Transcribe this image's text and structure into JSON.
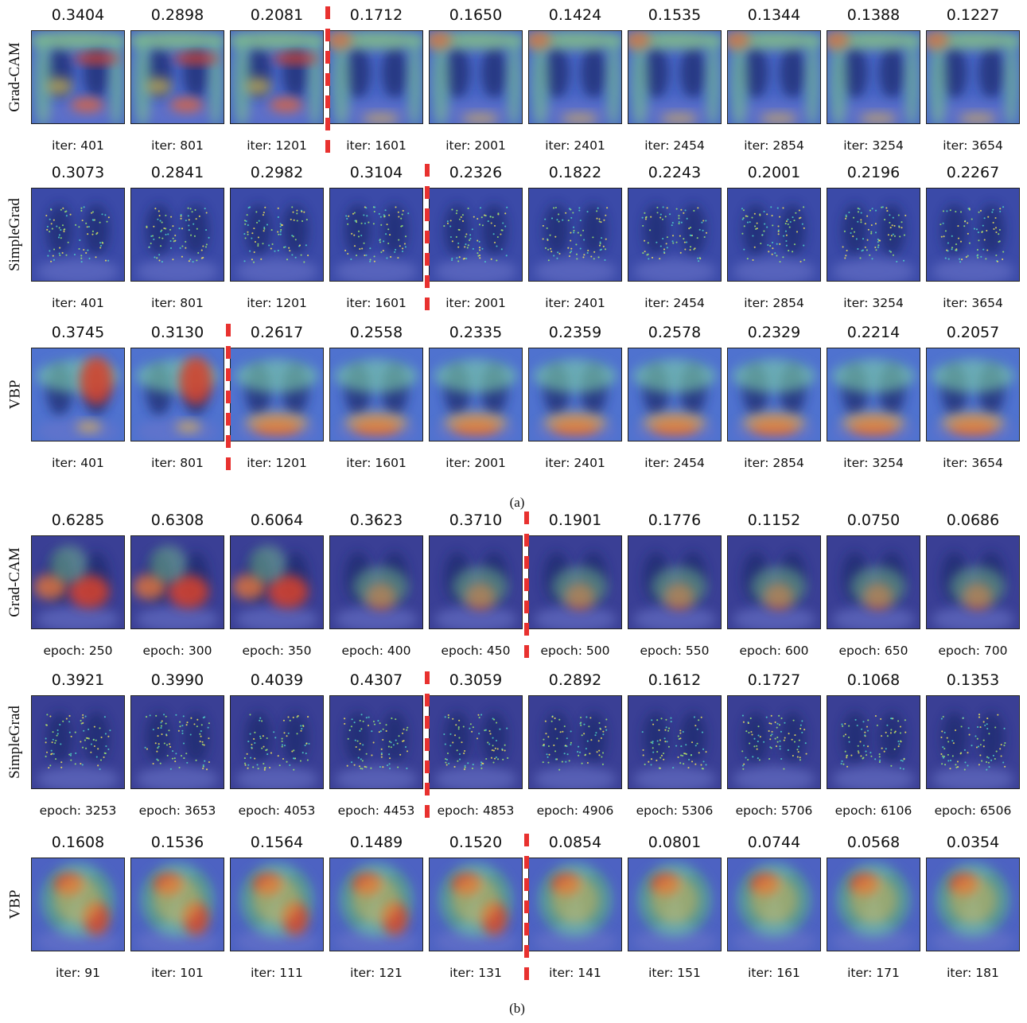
{
  "accent_color": "#e8312f",
  "panels": [
    {
      "caption": "(a)",
      "rows": [
        {
          "label": "Grad-CAM",
          "style": "gradcam-a",
          "scores": [
            "0.3404",
            "0.2898",
            "0.2081",
            "0.1712",
            "0.1650",
            "0.1424",
            "0.1535",
            "0.1344",
            "0.1388",
            "0.1227"
          ],
          "steps": [
            "iter: 401",
            "iter: 801",
            "iter: 1201",
            "iter: 1601",
            "iter: 2001",
            "iter: 2401",
            "iter: 2454",
            "iter: 2854",
            "iter: 3254",
            "iter: 3654"
          ],
          "divider_after_column": 3
        },
        {
          "label": "SimpleGrad",
          "style": "simplegrad-a",
          "scores": [
            "0.3073",
            "0.2841",
            "0.2982",
            "0.3104",
            "0.2326",
            "0.1822",
            "0.2243",
            "0.2001",
            "0.2196",
            "0.2267"
          ],
          "steps": [
            "iter: 401",
            "iter: 801",
            "iter: 1201",
            "iter: 1601",
            "iter: 2001",
            "iter: 2401",
            "iter: 2454",
            "iter: 2854",
            "iter: 3254",
            "iter: 3654"
          ],
          "divider_after_column": 4
        },
        {
          "label": "VBP",
          "style": "vbp-a",
          "scores": [
            "0.3745",
            "0.3130",
            "0.2617",
            "0.2558",
            "0.2335",
            "0.2359",
            "0.2578",
            "0.2329",
            "0.2214",
            "0.2057"
          ],
          "steps": [
            "iter: 401",
            "iter: 801",
            "iter: 1201",
            "iter: 1601",
            "iter: 2001",
            "iter: 2401",
            "iter: 2454",
            "iter: 2854",
            "iter: 3254",
            "iter: 3654"
          ],
          "divider_after_column": 2
        }
      ]
    },
    {
      "caption": "(b)",
      "rows": [
        {
          "label": "Grad-CAM",
          "style": "gradcam-b",
          "scores": [
            "0.6285",
            "0.6308",
            "0.6064",
            "0.3623",
            "0.3710",
            "0.1901",
            "0.1776",
            "0.1152",
            "0.0750",
            "0.0686"
          ],
          "steps": [
            "epoch: 250",
            "epoch: 300",
            "epoch: 350",
            "epoch: 400",
            "epoch: 450",
            "epoch: 500",
            "epoch: 550",
            "epoch: 600",
            "epoch: 650",
            "epoch: 700"
          ],
          "divider_after_column": 5
        },
        {
          "label": "SimpleGrad",
          "style": "simplegrad-b",
          "scores": [
            "0.3921",
            "0.3990",
            "0.4039",
            "0.4307",
            "0.3059",
            "0.2892",
            "0.1612",
            "0.1727",
            "0.1068",
            "0.1353"
          ],
          "steps": [
            "epoch: 3253",
            "epoch: 3653",
            "epoch: 4053",
            "epoch: 4453",
            "epoch: 4853",
            "epoch: 4906",
            "epoch: 5306",
            "epoch: 5706",
            "epoch: 6106",
            "epoch: 6506"
          ],
          "divider_after_column": 4
        },
        {
          "label": "VBP",
          "style": "vbp-b",
          "scores": [
            "0.1608",
            "0.1536",
            "0.1564",
            "0.1489",
            "0.1520",
            "0.0854",
            "0.0801",
            "0.0744",
            "0.0568",
            "0.0354"
          ],
          "steps": [
            "iter: 91",
            "iter: 101",
            "iter: 111",
            "iter: 121",
            "iter: 131",
            "iter: 141",
            "iter: 151",
            "iter: 161",
            "iter: 171",
            "iter: 181"
          ],
          "divider_after_column": 5
        }
      ]
    }
  ]
}
